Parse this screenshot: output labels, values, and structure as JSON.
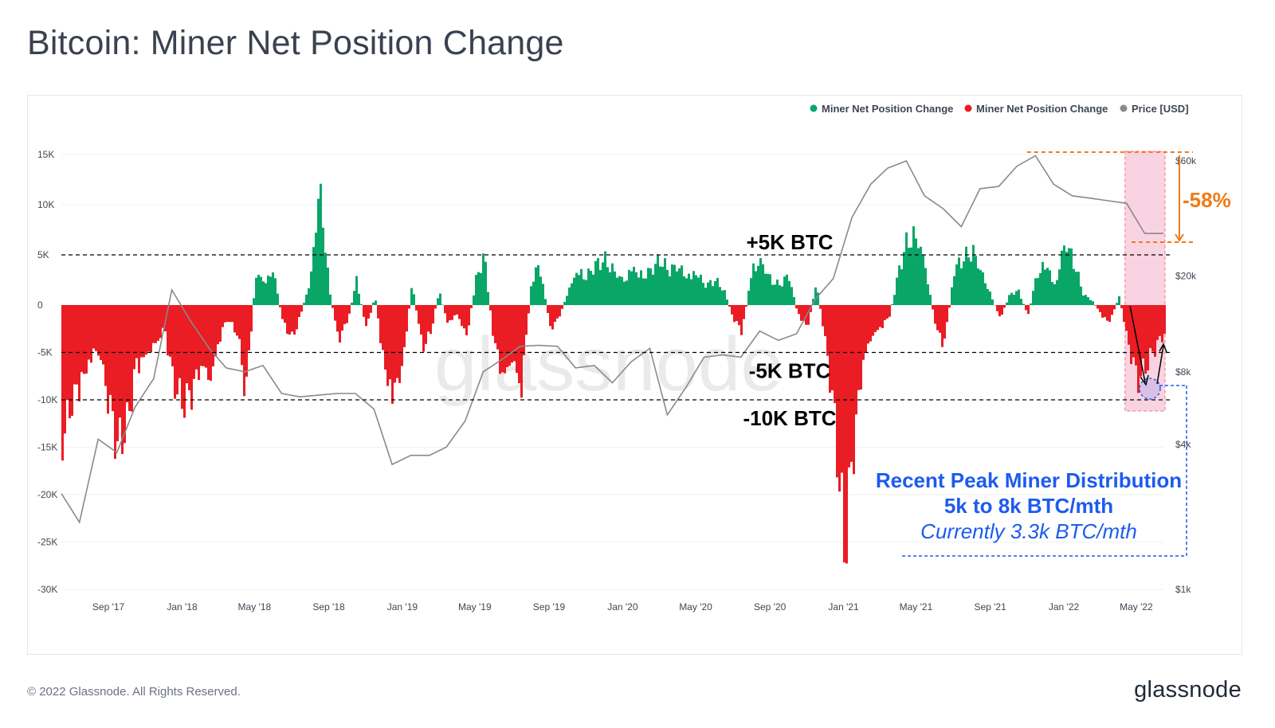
{
  "title": "Bitcoin: Miner Net Position Change",
  "footer": {
    "copyright": "© 2022 Glassnode. All Rights Reserved.",
    "logo": "glassnode"
  },
  "watermark": "glassnode",
  "colors": {
    "positive": "#0aa668",
    "negative": "#ea1c24",
    "price": "#8a8a8a",
    "orange": "#f07b1a",
    "blue": "#1c5bf0",
    "highlight": "#f7b6d0"
  },
  "chart_data": {
    "type": "bar",
    "legend": [
      {
        "name": "Miner Net Position Change",
        "color": "#0aa668"
      },
      {
        "name": "Miner Net Position Change",
        "color": "#ea1c24"
      },
      {
        "name": "Price [USD]",
        "color": "#8a8a8a"
      }
    ],
    "legend_position": "top-right",
    "left_axis": {
      "ticks": [
        "15K",
        "10K",
        "5K",
        "0",
        "-5K",
        "-10K",
        "-15K",
        "-20K",
        "-25K",
        "-30K"
      ],
      "values": [
        15000,
        10000,
        5000,
        0,
        -5000,
        -10000,
        -15000,
        -20000,
        -25000,
        -30000
      ],
      "range": [
        -30000,
        15000
      ]
    },
    "right_axis": {
      "scale": "log",
      "ticks": [
        "$60k",
        "$20k",
        "$8k",
        "$4k",
        "$1k"
      ],
      "values": [
        60000,
        20000,
        8000,
        4000,
        1000
      ],
      "range": [
        1000,
        60000
      ]
    },
    "x_ticks": [
      "Sep '17",
      "Jan '18",
      "May '18",
      "Sep '18",
      "Jan '19",
      "May '19",
      "Sep '19",
      "Jan '20",
      "May '20",
      "Sep '20",
      "Jan '21",
      "May '21",
      "Sep '21",
      "Jan '22",
      "May '22"
    ],
    "x_tick_dates": [
      "2017-09-01",
      "2018-01-01",
      "2018-05-01",
      "2018-09-01",
      "2019-01-01",
      "2019-05-01",
      "2019-09-01",
      "2020-01-01",
      "2020-05-01",
      "2020-09-01",
      "2021-01-01",
      "2021-05-01",
      "2021-09-01",
      "2022-01-01",
      "2022-05-01"
    ],
    "x_range": [
      "2017-06-15",
      "2022-06-15"
    ],
    "net_position_btc": [
      [
        "2017-06-15",
        -14000
      ],
      [
        "2017-07-01",
        -10500
      ],
      [
        "2017-07-15",
        -9000
      ],
      [
        "2017-08-01",
        -6000
      ],
      [
        "2017-08-15",
        -5000
      ],
      [
        "2017-09-01",
        -11000
      ],
      [
        "2017-09-15",
        -15000
      ],
      [
        "2017-10-01",
        -12500
      ],
      [
        "2017-10-15",
        -7000
      ],
      [
        "2017-11-01",
        -5500
      ],
      [
        "2017-11-15",
        -4500
      ],
      [
        "2017-12-01",
        -2500
      ],
      [
        "2017-12-15",
        -8000
      ],
      [
        "2018-01-01",
        -10500
      ],
      [
        "2018-01-15",
        -9500
      ],
      [
        "2018-02-01",
        -6500
      ],
      [
        "2018-02-15",
        -8500
      ],
      [
        "2018-03-01",
        -4000
      ],
      [
        "2018-03-15",
        -1500
      ],
      [
        "2018-04-01",
        -3000
      ],
      [
        "2018-04-15",
        -9500
      ],
      [
        "2018-05-01",
        3200
      ],
      [
        "2018-05-15",
        2500
      ],
      [
        "2018-06-01",
        3500
      ],
      [
        "2018-06-15",
        -2000
      ],
      [
        "2018-07-01",
        -3500
      ],
      [
        "2018-07-15",
        -1000
      ],
      [
        "2018-08-01",
        3000
      ],
      [
        "2018-08-15",
        12500
      ],
      [
        "2018-09-01",
        1500
      ],
      [
        "2018-09-15",
        -4000
      ],
      [
        "2018-10-01",
        -1500
      ],
      [
        "2018-10-15",
        2500
      ],
      [
        "2018-11-01",
        -2500
      ],
      [
        "2018-11-15",
        1000
      ],
      [
        "2018-12-01",
        -7500
      ],
      [
        "2018-12-15",
        -10500
      ],
      [
        "2019-01-01",
        -6000
      ],
      [
        "2019-01-15",
        2500
      ],
      [
        "2019-02-01",
        -4500
      ],
      [
        "2019-02-15",
        -3000
      ],
      [
        "2019-03-01",
        1500
      ],
      [
        "2019-03-15",
        -2000
      ],
      [
        "2019-04-01",
        -1000
      ],
      [
        "2019-04-15",
        -3500
      ],
      [
        "2019-05-01",
        2500
      ],
      [
        "2019-05-15",
        5000
      ],
      [
        "2019-06-01",
        -4500
      ],
      [
        "2019-06-15",
        -8000
      ],
      [
        "2019-07-01",
        -6000
      ],
      [
        "2019-07-15",
        -9500
      ],
      [
        "2019-08-01",
        2500
      ],
      [
        "2019-08-15",
        4000
      ],
      [
        "2019-09-01",
        -2500
      ],
      [
        "2019-09-15",
        -1500
      ],
      [
        "2019-10-01",
        1500
      ],
      [
        "2019-10-15",
        3500
      ],
      [
        "2019-11-01",
        3000
      ],
      [
        "2019-11-15",
        4000
      ],
      [
        "2019-12-01",
        4500
      ],
      [
        "2019-12-15",
        3500
      ],
      [
        "2020-01-01",
        2500
      ],
      [
        "2020-01-15",
        4000
      ],
      [
        "2020-02-01",
        3000
      ],
      [
        "2020-02-15",
        3500
      ],
      [
        "2020-03-01",
        4500
      ],
      [
        "2020-03-15",
        3500
      ],
      [
        "2020-04-01",
        4000
      ],
      [
        "2020-04-15",
        3000
      ],
      [
        "2020-05-01",
        3500
      ],
      [
        "2020-05-15",
        2000
      ],
      [
        "2020-06-01",
        2500
      ],
      [
        "2020-06-15",
        1500
      ],
      [
        "2020-07-01",
        -1500
      ],
      [
        "2020-07-15",
        -3000
      ],
      [
        "2020-08-01",
        4000
      ],
      [
        "2020-08-15",
        4500
      ],
      [
        "2020-09-01",
        2500
      ],
      [
        "2020-09-15",
        2000
      ],
      [
        "2020-10-01",
        3000
      ],
      [
        "2020-10-15",
        -1000
      ],
      [
        "2020-11-01",
        -2500
      ],
      [
        "2020-11-15",
        2500
      ],
      [
        "2020-12-01",
        -4500
      ],
      [
        "2020-12-15",
        -12000
      ],
      [
        "2021-01-01",
        -26000
      ],
      [
        "2021-01-15",
        -16000
      ],
      [
        "2021-02-01",
        -6000
      ],
      [
        "2021-02-15",
        -3500
      ],
      [
        "2021-03-01",
        -2500
      ],
      [
        "2021-03-15",
        -1500
      ],
      [
        "2021-04-01",
        3500
      ],
      [
        "2021-04-15",
        6500
      ],
      [
        "2021-05-01",
        7000
      ],
      [
        "2021-05-15",
        4000
      ],
      [
        "2021-06-01",
        -2500
      ],
      [
        "2021-06-15",
        -4500
      ],
      [
        "2021-07-01",
        3500
      ],
      [
        "2021-07-15",
        4500
      ],
      [
        "2021-08-01",
        5500
      ],
      [
        "2021-08-15",
        3500
      ],
      [
        "2021-09-01",
        1000
      ],
      [
        "2021-09-15",
        -1500
      ],
      [
        "2021-10-01",
        1000
      ],
      [
        "2021-10-15",
        1500
      ],
      [
        "2021-11-01",
        -1000
      ],
      [
        "2021-11-15",
        3000
      ],
      [
        "2021-12-01",
        4500
      ],
      [
        "2021-12-15",
        2000
      ],
      [
        "2022-01-01",
        6500
      ],
      [
        "2022-01-15",
        4500
      ],
      [
        "2022-02-01",
        1000
      ],
      [
        "2022-02-15",
        500
      ],
      [
        "2022-03-01",
        -1000
      ],
      [
        "2022-03-15",
        -2000
      ],
      [
        "2022-04-01",
        1000
      ],
      [
        "2022-04-15",
        -4000
      ],
      [
        "2022-05-01",
        -8000
      ],
      [
        "2022-05-15",
        -6500
      ],
      [
        "2022-06-01",
        -4500
      ],
      [
        "2022-06-15",
        -3300
      ]
    ],
    "price_usd": [
      [
        "2017-06-15",
        2500
      ],
      [
        "2017-07-15",
        1900
      ],
      [
        "2017-08-15",
        4200
      ],
      [
        "2017-09-15",
        3700
      ],
      [
        "2017-10-15",
        5700
      ],
      [
        "2017-11-15",
        7500
      ],
      [
        "2017-12-15",
        17500
      ],
      [
        "2018-01-15",
        13000
      ],
      [
        "2018-02-15",
        10000
      ],
      [
        "2018-03-15",
        8300
      ],
      [
        "2018-04-15",
        8000
      ],
      [
        "2018-05-15",
        8500
      ],
      [
        "2018-06-15",
        6500
      ],
      [
        "2018-07-15",
        6300
      ],
      [
        "2018-08-15",
        6400
      ],
      [
        "2018-09-15",
        6500
      ],
      [
        "2018-10-15",
        6500
      ],
      [
        "2018-11-15",
        5600
      ],
      [
        "2018-12-15",
        3300
      ],
      [
        "2019-01-15",
        3600
      ],
      [
        "2019-02-15",
        3600
      ],
      [
        "2019-03-15",
        3900
      ],
      [
        "2019-04-15",
        5000
      ],
      [
        "2019-05-15",
        8000
      ],
      [
        "2019-06-15",
        9000
      ],
      [
        "2019-07-15",
        10200
      ],
      [
        "2019-08-15",
        10300
      ],
      [
        "2019-09-15",
        10200
      ],
      [
        "2019-10-15",
        8300
      ],
      [
        "2019-11-15",
        8500
      ],
      [
        "2019-12-15",
        7200
      ],
      [
        "2020-01-15",
        8800
      ],
      [
        "2020-02-15",
        10000
      ],
      [
        "2020-03-15",
        5300
      ],
      [
        "2020-04-15",
        6900
      ],
      [
        "2020-05-15",
        9200
      ],
      [
        "2020-06-15",
        9400
      ],
      [
        "2020-07-15",
        9200
      ],
      [
        "2020-08-15",
        11800
      ],
      [
        "2020-09-15",
        10800
      ],
      [
        "2020-10-15",
        11500
      ],
      [
        "2020-11-15",
        16000
      ],
      [
        "2020-12-15",
        19500
      ],
      [
        "2021-01-15",
        35000
      ],
      [
        "2021-02-15",
        48000
      ],
      [
        "2021-03-15",
        56000
      ],
      [
        "2021-04-15",
        60000
      ],
      [
        "2021-05-15",
        43000
      ],
      [
        "2021-06-15",
        38000
      ],
      [
        "2021-07-15",
        32000
      ],
      [
        "2021-08-15",
        46000
      ],
      [
        "2021-09-15",
        47000
      ],
      [
        "2021-10-15",
        57000
      ],
      [
        "2021-11-15",
        63000
      ],
      [
        "2021-12-15",
        48000
      ],
      [
        "2022-01-15",
        43000
      ],
      [
        "2022-02-15",
        42000
      ],
      [
        "2022-03-15",
        41000
      ],
      [
        "2022-04-15",
        40000
      ],
      [
        "2022-05-15",
        30000
      ],
      [
        "2022-06-15",
        30000
      ]
    ],
    "annotations": {
      "plus5k": "+5K BTC",
      "minus5k": "-5K BTC",
      "minus10k": "-10K BTC",
      "drawdown": "-58%",
      "note_line1": "Recent Peak Miner Distribution",
      "note_line2": "5k to 8k BTC/mth",
      "note_line3": "Currently 3.3k BTC/mth"
    },
    "reference_levels": [
      5000,
      -5000,
      -10000
    ],
    "highlight_range": [
      "2022-04-15",
      "2022-06-15"
    ],
    "grid": true
  }
}
